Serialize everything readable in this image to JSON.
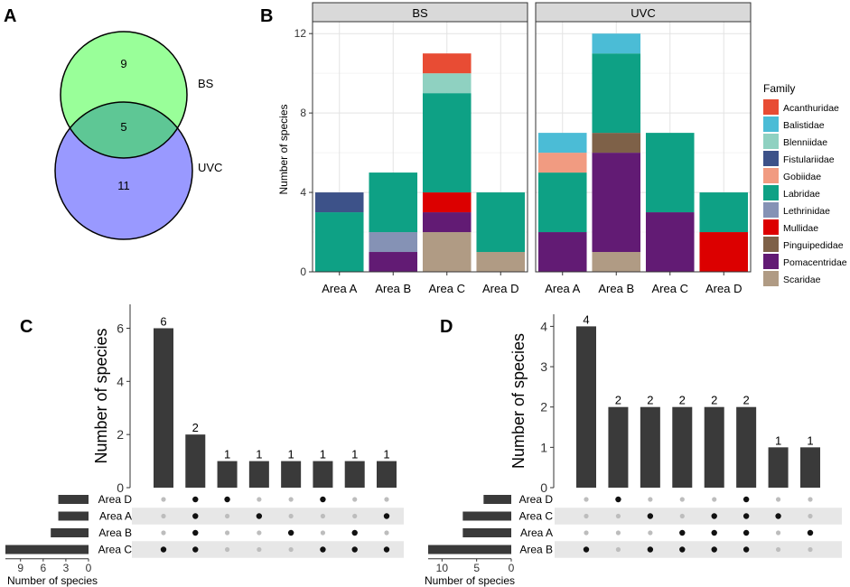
{
  "panel_labels": {
    "a": "A",
    "b": "B",
    "c": "C",
    "d": "D"
  },
  "colors": {
    "bar": "#3a3a3a",
    "dot_on": "#111111",
    "dot_off": "#bdbdbd",
    "stripe": "#e7e7e7",
    "strip_bg": "#d9d9d9",
    "venn_bs": "#99ff99",
    "venn_uvc": "#9999ff",
    "venn_overlap": "#5ec795"
  },
  "chart_data": [
    {
      "panel": "A",
      "type": "venn",
      "sets": [
        {
          "name": "BS",
          "only": "9"
        },
        {
          "name": "UVC",
          "only": "11"
        }
      ],
      "intersection": "5"
    },
    {
      "panel": "B",
      "type": "bar",
      "stacked": true,
      "facets": [
        "BS",
        "UVC"
      ],
      "categories": [
        "Area A",
        "Area B",
        "Area C",
        "Area D"
      ],
      "ylabel": "Number of species",
      "yticks": [
        0,
        4,
        8,
        12
      ],
      "ylim": [
        0,
        12.6
      ],
      "legend_title": "Family",
      "families": [
        {
          "name": "Acanthuridae",
          "color": "#e84c34"
        },
        {
          "name": "Balistidae",
          "color": "#4bbcd6"
        },
        {
          "name": "Blenniidae",
          "color": "#8fd1c1"
        },
        {
          "name": "Fistulariidae",
          "color": "#3d5289"
        },
        {
          "name": "Gobiidae",
          "color": "#f19b81"
        },
        {
          "name": "Labridae",
          "color": "#0ea185"
        },
        {
          "name": "Lethrinidae",
          "color": "#8592b5"
        },
        {
          "name": "Mullidae",
          "color": "#dc0000"
        },
        {
          "name": "Pinguipedidae",
          "color": "#7e6148"
        },
        {
          "name": "Pomacentridae",
          "color": "#621b74"
        },
        {
          "name": "Scaridae",
          "color": "#b09b84"
        }
      ],
      "stack_order": [
        "Scaridae",
        "Pomacentridae",
        "Pinguipedidae",
        "Mullidae",
        "Lethrinidae",
        "Labridae",
        "Gobiidae",
        "Fistulariidae",
        "Blenniidae",
        "Balistidae",
        "Acanthuridae"
      ],
      "data": {
        "BS": {
          "Area A": {
            "Labridae": 3,
            "Fistulariidae": 1
          },
          "Area B": {
            "Pomacentridae": 1,
            "Lethrinidae": 1,
            "Labridae": 3
          },
          "Area C": {
            "Scaridae": 2,
            "Pomacentridae": 1,
            "Mullidae": 1,
            "Labridae": 5,
            "Blenniidae": 1,
            "Acanthuridae": 1
          },
          "Area D": {
            "Scaridae": 1,
            "Labridae": 3
          }
        },
        "UVC": {
          "Area A": {
            "Pomacentridae": 2,
            "Labridae": 3,
            "Gobiidae": 1,
            "Balistidae": 1
          },
          "Area B": {
            "Scaridae": 1,
            "Pomacentridae": 5,
            "Pinguipedidae": 1,
            "Labridae": 4,
            "Balistidae": 1
          },
          "Area C": {
            "Pomacentridae": 3,
            "Labridae": 4
          },
          "Area D": {
            "Mullidae": 2,
            "Labridae": 2
          }
        }
      }
    },
    {
      "panel": "C",
      "type": "upset",
      "ylabel": "Number of species",
      "set_size_label": "Number of species",
      "yticks": [
        0,
        2,
        4,
        6
      ],
      "ylim": [
        0,
        6.9
      ],
      "set_size_ticks": [
        0,
        3,
        6,
        9
      ],
      "set_size_max": 11,
      "sets": [
        "Area D",
        "Area A",
        "Area B",
        "Area C"
      ],
      "set_sizes": [
        4,
        4,
        5,
        11
      ],
      "intersections": [
        {
          "value": 6,
          "label": "6",
          "members": [
            3
          ]
        },
        {
          "value": 2,
          "label": "2",
          "members": [
            0,
            1,
            2,
            3
          ]
        },
        {
          "value": 1,
          "label": "1",
          "members": [
            0
          ]
        },
        {
          "value": 1,
          "label": "1",
          "members": [
            1
          ]
        },
        {
          "value": 1,
          "label": "1",
          "members": [
            2
          ]
        },
        {
          "value": 1,
          "label": "1",
          "members": [
            0,
            3
          ]
        },
        {
          "value": 1,
          "label": "1",
          "members": [
            2,
            3
          ]
        },
        {
          "value": 1,
          "label": "1",
          "members": [
            1,
            3
          ]
        }
      ]
    },
    {
      "panel": "D",
      "type": "upset",
      "ylabel": "Number of species",
      "set_size_label": "Number of species",
      "yticks": [
        0,
        1,
        2,
        3,
        4
      ],
      "ylim": [
        0,
        4.3
      ],
      "set_size_ticks": [
        0,
        5,
        10
      ],
      "set_size_max": 12,
      "sets": [
        "Area D",
        "Area C",
        "Area A",
        "Area B"
      ],
      "set_sizes": [
        4,
        7,
        7,
        12
      ],
      "intersections": [
        {
          "value": 4,
          "label": "4",
          "members": [
            3
          ]
        },
        {
          "value": 2,
          "label": "2",
          "members": [
            0
          ]
        },
        {
          "value": 2,
          "label": "2",
          "members": [
            1,
            3
          ]
        },
        {
          "value": 2,
          "label": "2",
          "members": [
            2,
            3
          ]
        },
        {
          "value": 2,
          "label": "2",
          "members": [
            1,
            2,
            3
          ]
        },
        {
          "value": 2,
          "label": "2",
          "members": [
            0,
            1,
            2,
            3
          ]
        },
        {
          "value": 1,
          "label": "1",
          "members": [
            1
          ]
        },
        {
          "value": 1,
          "label": "1",
          "members": [
            2
          ]
        }
      ]
    }
  ]
}
